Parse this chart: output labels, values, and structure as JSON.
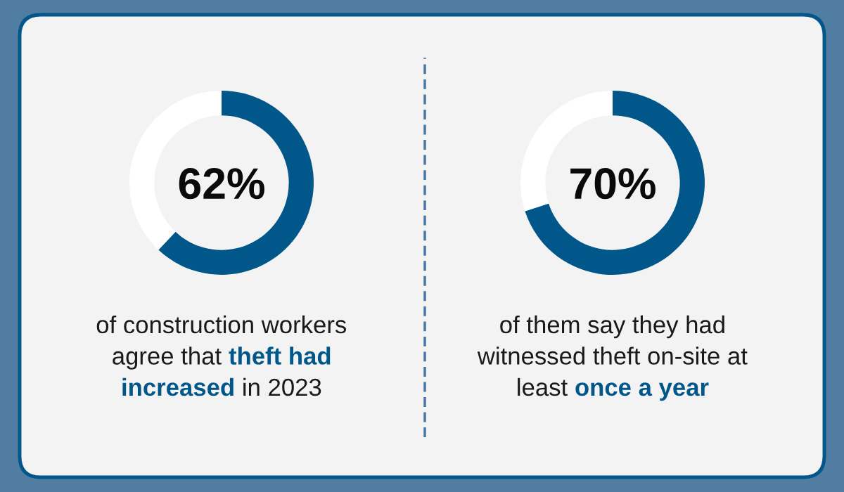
{
  "chart_data": [
    {
      "type": "donut",
      "categories": [
        null,
        null
      ],
      "values": [
        62,
        38
      ],
      "colors": [
        "#02578a",
        "#ffffff"
      ],
      "value_labels": [
        "62%",
        null
      ],
      "annotations": [
        "of construction workers",
        "\nagree that ",
        "theft had",
        "\nincreased",
        " in 2023"
      ]
    },
    {
      "type": "donut",
      "categories": [
        null,
        null
      ],
      "values": [
        70,
        30
      ],
      "colors": [
        "#02578a",
        "#ffffff"
      ],
      "value_labels": [
        "70%",
        null
      ],
      "annotations": [
        "of them say they had",
        "\nwitnessed theft on-site at",
        "\nleast ",
        "once a year"
      ]
    }
  ]
}
